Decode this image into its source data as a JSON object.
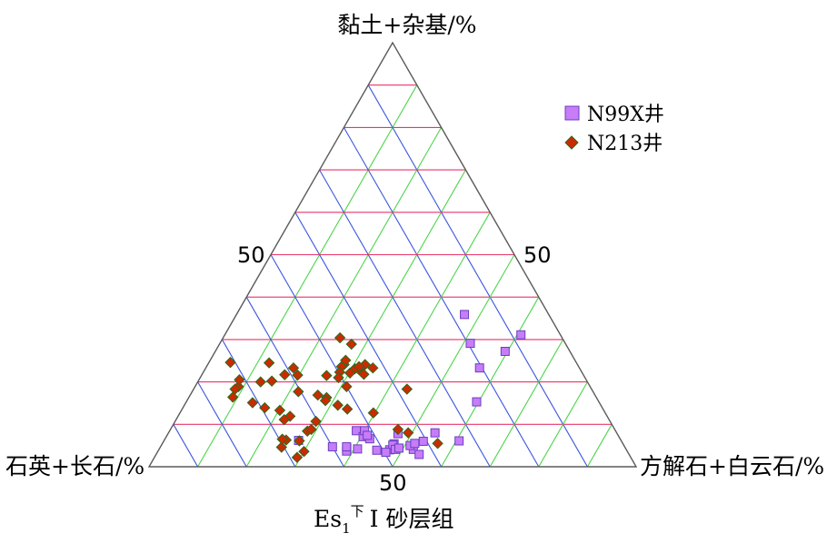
{
  "chart_data": {
    "type": "scatter",
    "subtype": "ternary",
    "title": "Es₁下Ⅰ砂层组",
    "title_main": "Es",
    "title_sub": "1",
    "title_sup": "下",
    "title_rest": "Ⅰ 砂层组",
    "axes": {
      "top": "黏土+杂基/%",
      "left": "石英+长石/%",
      "right": "方解石+白云石/%"
    },
    "tick_labels": {
      "left_edge": "50",
      "right_edge": "50",
      "bottom_edge": "50"
    },
    "grid": {
      "step_percent": 10,
      "colors": {
        "top_axis": "#e8356a",
        "left_axis": "#3a55e0",
        "right_axis": "#4cd44c"
      }
    },
    "legend_position": "top-right",
    "series": [
      {
        "name": "N99X井",
        "marker": "square",
        "color": "#c77cf8",
        "edge": "#6a3fc1",
        "points": [
          [
            4.1,
            43.7,
            52.2
          ],
          [
            4.2,
            55.1,
            40.7
          ],
          [
            4.4,
            57.2,
            38.4
          ],
          [
            3.7,
            57.6,
            38.7
          ],
          [
            4.7,
            57.1,
            38.2
          ],
          [
            4.7,
            60.0,
            35.3
          ],
          [
            6.2,
            66.2,
            27.6
          ],
          [
            8.5,
            53.2,
            38.3
          ],
          [
            7.1,
            52.5,
            40.4
          ],
          [
            6.6,
            51.4,
            42.0
          ],
          [
            8.5,
            51.5,
            40.0
          ],
          [
            7.4,
            51.5,
            41.1
          ],
          [
            4.0,
            48.6,
            47.4
          ],
          [
            5.4,
            47.0,
            47.6
          ],
          [
            5.1,
            47.4,
            47.5
          ],
          [
            3.4,
            49.7,
            46.9
          ],
          [
            3.9,
            51.3,
            44.8
          ],
          [
            2.9,
            43.1,
            54.0
          ],
          [
            4.1,
            47.4,
            48.5
          ],
          [
            4.4,
            46.5,
            49.1
          ],
          [
            7.8,
            45.0,
            47.2
          ],
          [
            5.0,
            43.9,
            51.1
          ],
          [
            5.5,
            42.7,
            51.8
          ],
          [
            6.0,
            40.7,
            53.3
          ],
          [
            8.0,
            37.3,
            54.7
          ],
          [
            6.1,
            33.3,
            60.6
          ],
          [
            15.3,
            25.1,
            59.6
          ],
          [
            23.3,
            20.5,
            56.2
          ],
          [
            29.1,
            19.5,
            51.4
          ],
          [
            27.2,
            13.3,
            59.5
          ],
          [
            31.1,
            8.1,
            60.8
          ],
          [
            35.9,
            17.3,
            46.8
          ]
        ]
      },
      {
        "name": "N213井",
        "marker": "diamond",
        "color": "#cc2a00",
        "edge": "#2d6a1f",
        "points": [
          [
            3.6,
            66.4,
            30.0
          ],
          [
            2.2,
            68.5,
            29.3
          ],
          [
            4.6,
            70.5,
            24.9
          ],
          [
            6.3,
            68.7,
            25.0
          ],
          [
            6.5,
            69.4,
            24.1
          ],
          [
            6.1,
            66.1,
            27.8
          ],
          [
            8.4,
            63.3,
            28.3
          ],
          [
            8.8,
            62.3,
            28.9
          ],
          [
            10.7,
            60.4,
            28.9
          ],
          [
            11.9,
            65.1,
            23.0
          ],
          [
            11.1,
            66.7,
            22.2
          ],
          [
            13.3,
            66.5,
            20.2
          ],
          [
            13.9,
            69.3,
            16.8
          ],
          [
            15.1,
            71.2,
            13.7
          ],
          [
            16.4,
            74.6,
            9.0
          ],
          [
            18.9,
            72.2,
            8.9
          ],
          [
            18.3,
            73.2,
            8.5
          ],
          [
            20.5,
            71.2,
            8.3
          ],
          [
            24.6,
            71.0,
            4.4
          ],
          [
            24.5,
            63.1,
            12.4
          ],
          [
            23.3,
            58.7,
            18.0
          ],
          [
            21.7,
            61.3,
            17.0
          ],
          [
            21.6,
            58.7,
            19.7
          ],
          [
            20.2,
            64.7,
            15.1
          ],
          [
            20.0,
            67.1,
            12.9
          ],
          [
            17.7,
            60.5,
            21.8
          ],
          [
            16.9,
            56.9,
            26.2
          ],
          [
            16.3,
            55.4,
            28.3
          ],
          [
            15.6,
            56.0,
            28.4
          ],
          [
            14.5,
            54.0,
            31.5
          ],
          [
            13.6,
            52.5,
            33.9
          ],
          [
            12.7,
            47.6,
            39.7
          ],
          [
            8.8,
            44.5,
            46.7
          ],
          [
            8.0,
            42.8,
            49.2
          ],
          [
            5.5,
            38.0,
            56.5
          ],
          [
            18.9,
            50.0,
            31.1
          ],
          [
            24.1,
            43.6,
            32.3
          ],
          [
            23.0,
            45.5,
            31.5
          ],
          [
            23.1,
            46.2,
            30.7
          ],
          [
            21.8,
            45.0,
            33.2
          ],
          [
            24.1,
            47.9,
            28.0
          ],
          [
            23.6,
            48.7,
            27.7
          ],
          [
            21.5,
            52.8,
            25.7
          ],
          [
            25.1,
            47.1,
            27.8
          ],
          [
            23.6,
            45.1,
            31.3
          ],
          [
            22.1,
            47.7,
            30.2
          ],
          [
            23.3,
            42.4,
            34.3
          ],
          [
            30.4,
            45.6,
            24.0
          ],
          [
            28.9,
            44.0,
            27.1
          ],
          [
            18.3,
            37.9,
            43.8
          ],
          [
            22.3,
            49.7,
            28.0
          ],
          [
            21.0,
            50.6,
            28.4
          ]
        ]
      }
    ]
  }
}
